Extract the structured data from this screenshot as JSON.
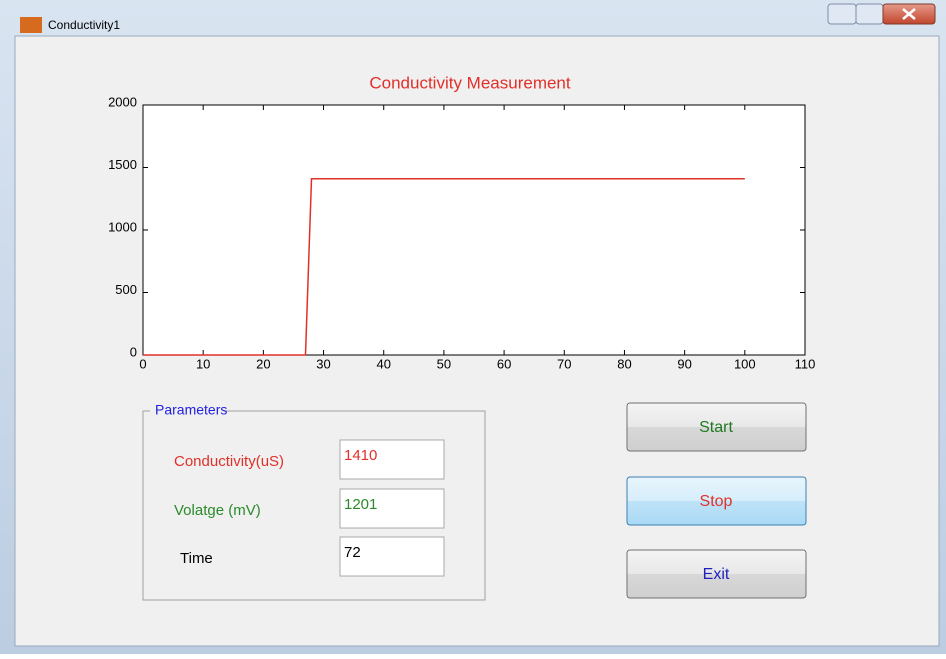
{
  "window": {
    "title": "Conductivity1"
  },
  "chart_data": {
    "type": "line",
    "title": "Conductivity Measurement",
    "x": [
      0,
      27,
      28,
      100
    ],
    "series": [
      {
        "color": "#e0302a",
        "values": [
          0,
          0,
          1410,
          1410
        ]
      }
    ],
    "xlim": [
      0,
      110
    ],
    "xticks": [
      0,
      10,
      20,
      30,
      40,
      50,
      60,
      70,
      80,
      90,
      100,
      110
    ],
    "ylim": [
      0,
      2000
    ],
    "yticks": [
      0,
      500,
      1000,
      1500,
      2000
    ],
    "grid": false
  },
  "parameters": {
    "title": "Parameters",
    "fields": [
      {
        "label": "Conductivity(uS)",
        "value": 1410
      },
      {
        "label": "Volatge (mV)",
        "value": 1201
      },
      {
        "label": "Time",
        "value": 72
      }
    ]
  },
  "buttons": [
    "Start",
    "Stop",
    "Exit"
  ]
}
